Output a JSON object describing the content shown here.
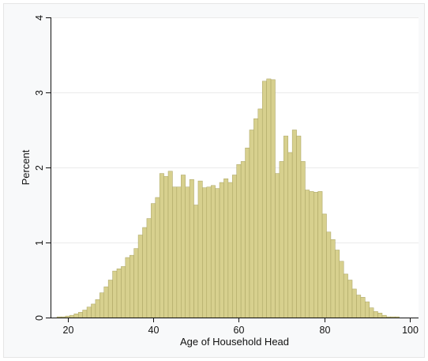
{
  "chart_data": {
    "type": "bar",
    "title": "",
    "xlabel": "Age of Household Head",
    "ylabel": "Percent",
    "xlim": [
      16,
      102
    ],
    "ylim": [
      0,
      4
    ],
    "xticks": [
      20,
      40,
      60,
      80,
      100
    ],
    "yticks": [
      0,
      1,
      2,
      3,
      4
    ],
    "grid": "horizontal",
    "legend": "none",
    "bar_color": "#d7d08e",
    "bar_edge_color": "#a8a260",
    "bin_width": 1,
    "bins": [
      {
        "x": 18,
        "y": 0.01
      },
      {
        "x": 19,
        "y": 0.01
      },
      {
        "x": 20,
        "y": 0.02
      },
      {
        "x": 21,
        "y": 0.03
      },
      {
        "x": 22,
        "y": 0.05
      },
      {
        "x": 23,
        "y": 0.07
      },
      {
        "x": 24,
        "y": 0.1
      },
      {
        "x": 25,
        "y": 0.14
      },
      {
        "x": 26,
        "y": 0.18
      },
      {
        "x": 27,
        "y": 0.24
      },
      {
        "x": 28,
        "y": 0.33
      },
      {
        "x": 29,
        "y": 0.41
      },
      {
        "x": 30,
        "y": 0.5
      },
      {
        "x": 31,
        "y": 0.62
      },
      {
        "x": 32,
        "y": 0.65
      },
      {
        "x": 33,
        "y": 0.68
      },
      {
        "x": 34,
        "y": 0.8
      },
      {
        "x": 35,
        "y": 0.83
      },
      {
        "x": 36,
        "y": 0.92
      },
      {
        "x": 37,
        "y": 1.1
      },
      {
        "x": 38,
        "y": 1.2
      },
      {
        "x": 39,
        "y": 1.32
      },
      {
        "x": 40,
        "y": 1.52
      },
      {
        "x": 41,
        "y": 1.6
      },
      {
        "x": 42,
        "y": 1.92
      },
      {
        "x": 43,
        "y": 1.88
      },
      {
        "x": 44,
        "y": 1.95
      },
      {
        "x": 45,
        "y": 1.74
      },
      {
        "x": 46,
        "y": 1.74
      },
      {
        "x": 47,
        "y": 1.9
      },
      {
        "x": 48,
        "y": 1.74
      },
      {
        "x": 49,
        "y": 1.84
      },
      {
        "x": 50,
        "y": 1.5
      },
      {
        "x": 51,
        "y": 1.82
      },
      {
        "x": 52,
        "y": 1.73
      },
      {
        "x": 53,
        "y": 1.74
      },
      {
        "x": 54,
        "y": 1.76
      },
      {
        "x": 55,
        "y": 1.72
      },
      {
        "x": 56,
        "y": 1.8
      },
      {
        "x": 57,
        "y": 1.85
      },
      {
        "x": 58,
        "y": 1.8
      },
      {
        "x": 59,
        "y": 1.9
      },
      {
        "x": 60,
        "y": 2.04
      },
      {
        "x": 61,
        "y": 2.08
      },
      {
        "x": 62,
        "y": 2.26
      },
      {
        "x": 63,
        "y": 2.5
      },
      {
        "x": 64,
        "y": 2.65
      },
      {
        "x": 65,
        "y": 2.78
      },
      {
        "x": 66,
        "y": 3.15
      },
      {
        "x": 67,
        "y": 3.18
      },
      {
        "x": 68,
        "y": 3.17
      },
      {
        "x": 69,
        "y": 1.92
      },
      {
        "x": 70,
        "y": 2.08
      },
      {
        "x": 71,
        "y": 2.42
      },
      {
        "x": 72,
        "y": 2.2
      },
      {
        "x": 73,
        "y": 2.5
      },
      {
        "x": 74,
        "y": 2.42
      },
      {
        "x": 75,
        "y": 2.08
      },
      {
        "x": 76,
        "y": 1.7
      },
      {
        "x": 77,
        "y": 1.68
      },
      {
        "x": 78,
        "y": 1.67
      },
      {
        "x": 79,
        "y": 1.68
      },
      {
        "x": 80,
        "y": 1.38
      },
      {
        "x": 81,
        "y": 1.14
      },
      {
        "x": 82,
        "y": 1.04
      },
      {
        "x": 83,
        "y": 0.9
      },
      {
        "x": 84,
        "y": 0.75
      },
      {
        "x": 85,
        "y": 0.58
      },
      {
        "x": 86,
        "y": 0.5
      },
      {
        "x": 87,
        "y": 0.38
      },
      {
        "x": 88,
        "y": 0.3
      },
      {
        "x": 89,
        "y": 0.27
      },
      {
        "x": 90,
        "y": 0.21
      },
      {
        "x": 91,
        "y": 0.13
      },
      {
        "x": 92,
        "y": 0.08
      },
      {
        "x": 93,
        "y": 0.06
      },
      {
        "x": 94,
        "y": 0.03
      },
      {
        "x": 95,
        "y": 0.01
      },
      {
        "x": 96,
        "y": 0.01
      },
      {
        "x": 97,
        "y": 0.01
      }
    ]
  }
}
